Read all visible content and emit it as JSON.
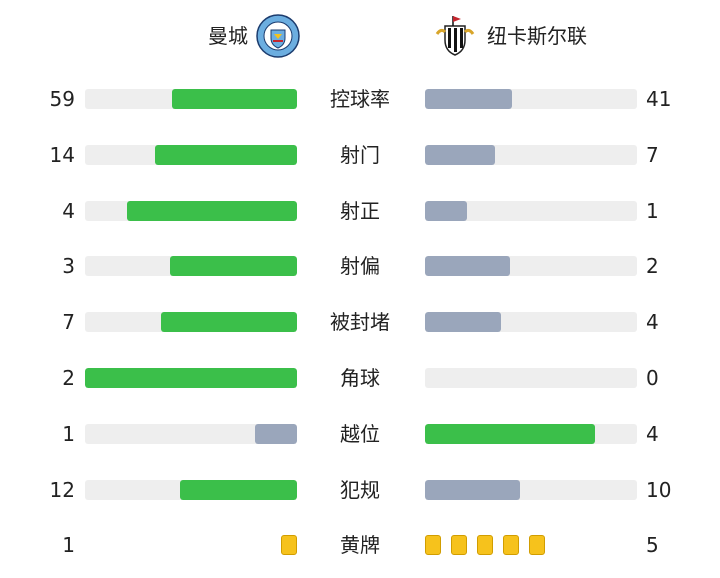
{
  "colors": {
    "winner": "#3bbf4a",
    "loser": "#9aa6bb",
    "track": "#eeeeee",
    "yellow_card": "#f6c21c"
  },
  "teams": {
    "home": {
      "name": "曼城",
      "badge_icon": "manchester-city-crest-icon"
    },
    "away": {
      "name": "纽卡斯尔联",
      "badge_icon": "newcastle-united-crest-icon"
    }
  },
  "stats": [
    {
      "label": "控球率",
      "home": "59",
      "away": "41",
      "home_fill": 0.59,
      "away_fill": 0.41,
      "leader": "home"
    },
    {
      "label": "射门",
      "home": "14",
      "away": "7",
      "home_fill": 0.67,
      "away_fill": 0.33,
      "leader": "home"
    },
    {
      "label": "射正",
      "home": "4",
      "away": "1",
      "home_fill": 0.8,
      "away_fill": 0.2,
      "leader": "home"
    },
    {
      "label": "射偏",
      "home": "3",
      "away": "2",
      "home_fill": 0.6,
      "away_fill": 0.4,
      "leader": "home"
    },
    {
      "label": "被封堵",
      "home": "7",
      "away": "4",
      "home_fill": 0.64,
      "away_fill": 0.36,
      "leader": "home"
    },
    {
      "label": "角球",
      "home": "2",
      "away": "0",
      "home_fill": 1.0,
      "away_fill": 0.0,
      "leader": "home"
    },
    {
      "label": "越位",
      "home": "1",
      "away": "4",
      "home_fill": 0.2,
      "away_fill": 0.8,
      "leader": "away"
    },
    {
      "label": "犯规",
      "home": "12",
      "away": "10",
      "home_fill": 0.55,
      "away_fill": 0.45,
      "leader": "home"
    }
  ],
  "cards": {
    "label": "黄牌",
    "home": "1",
    "away": "5",
    "home_count": 1,
    "away_count": 5
  }
}
